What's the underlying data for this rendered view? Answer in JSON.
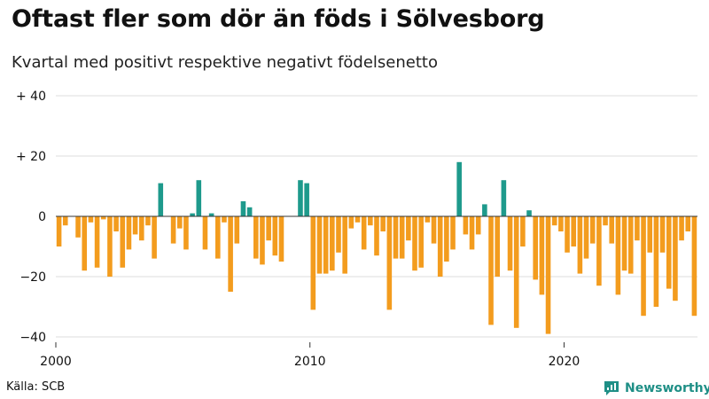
{
  "title": "Oftast fler som dör än föds i Sölvesborg",
  "subtitle": "Kvartal med positivt respektive negativt födelsenetto",
  "source": "Källa: SCB",
  "brand": "Newsworthy",
  "colors": {
    "positive": "#1e9a8c",
    "negative": "#f39c1e",
    "grid": "#dddddd",
    "axis": "#333333",
    "brand": "#1f8f86"
  },
  "chart_data": {
    "type": "bar",
    "title": "Oftast fler som dör än föds i Sölvesborg",
    "subtitle": "Kvartal med positivt respektive negativt födelsenetto",
    "xlabel": "",
    "ylabel": "",
    "start_year": 2000,
    "periods_per_year": 4,
    "ylim": [
      -40,
      40
    ],
    "yticks": [
      40,
      20,
      0,
      -20,
      -40
    ],
    "ytick_labels": [
      "+ 40",
      "+ 20",
      "0",
      "−20",
      "−40"
    ],
    "xticks": [
      2000,
      2010,
      2020
    ],
    "xtick_labels": [
      "2000",
      "2010",
      "2020"
    ],
    "values": [
      -10,
      -3,
      0,
      -7,
      -18,
      -2,
      -17,
      -1,
      -20,
      -5,
      -17,
      -11,
      -6,
      -8,
      -3,
      -14,
      11,
      0,
      -9,
      -4,
      -11,
      1,
      12,
      -11,
      1,
      -14,
      -2,
      -25,
      -9,
      5,
      3,
      -14,
      -16,
      -8,
      -13,
      -15,
      0,
      0,
      12,
      11,
      -31,
      -19,
      -19,
      -18,
      -12,
      -19,
      -4,
      -2,
      -11,
      -3,
      -13,
      -5,
      -31,
      -14,
      -14,
      -8,
      -18,
      -17,
      -2,
      -9,
      -20,
      -15,
      -11,
      18,
      -6,
      -11,
      -6,
      4,
      -36,
      -20,
      12,
      -18,
      -37,
      -10,
      2,
      -21,
      -26,
      -39,
      -3,
      -5,
      -12,
      -10,
      -19,
      -14,
      -9,
      -23,
      -3,
      -9,
      -26,
      -18,
      -19,
      -8,
      -33,
      -12,
      -30,
      -12,
      -24,
      -28,
      -8,
      -5,
      -33
    ]
  }
}
